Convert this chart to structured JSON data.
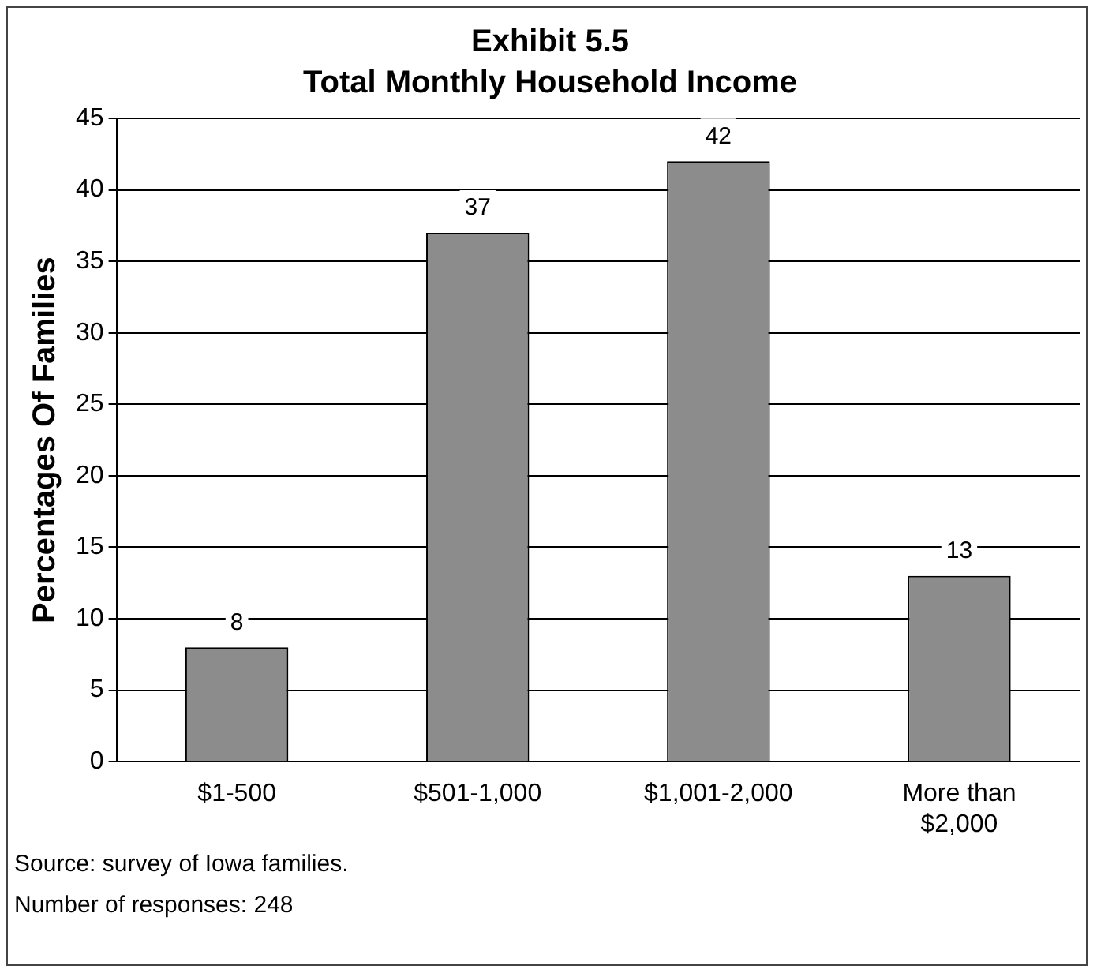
{
  "chart_data": {
    "type": "bar",
    "title": "Exhibit 5.5",
    "subtitle": "Total Monthly Household Income",
    "ylabel": "Percentages Of Families",
    "categories": [
      "$1-500",
      "$501-1,000",
      "$1,001-2,000",
      "More than $2,000"
    ],
    "values": [
      8,
      37,
      42,
      13
    ],
    "color": "#8c8c8c",
    "ylim": [
      0,
      45
    ],
    "yticks": [
      0,
      5,
      10,
      15,
      20,
      25,
      30,
      35,
      40,
      45
    ],
    "grid": "y",
    "data_labels": true,
    "annotations": [
      "Source: survey of Iowa families.",
      "Number of responses: 248"
    ]
  }
}
